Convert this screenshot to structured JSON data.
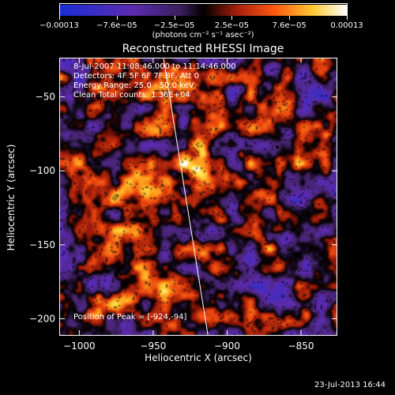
{
  "colorbar": {
    "units_label": "(photons cm⁻² s⁻¹ asec⁻²)",
    "tick_labels": [
      "−0.00013",
      "−7.6e−05",
      "−2.5e−05",
      "2.5e−05",
      "7.6e−05",
      "0.00013"
    ]
  },
  "annotations": {
    "time_range": "8-Jul-2007 11:08:46.000 to 11:14:46.000",
    "detectors": "Detectors: 4F 5F 6F 7F 8F, Att 0",
    "energy": "Energy Range: 25.0 - 50.0 keV",
    "method": "Clean    Total counts: 1.36E+04",
    "peak": "Position of Peak = [-924,-94]"
  },
  "footer": {
    "timestamp": "23-Jul-2013 16:44"
  },
  "colors": {
    "background": "#000000",
    "limb_line": "#ffffff"
  },
  "chart_data": {
    "type": "heatmap",
    "title": "Reconstructed RHESSI Image",
    "xlabel": "Heliocentric X (arcsec)",
    "ylabel": "Heliocentric Y (arcsec)",
    "xlim": [
      -1013,
      -826
    ],
    "ylim": [
      -211,
      -24
    ],
    "x_ticks": [
      -1000,
      -950,
      -900,
      -850
    ],
    "y_ticks": [
      -50,
      -100,
      -150,
      -200
    ],
    "x_tick_labels": [
      "−1000",
      "−950",
      "−900",
      "−850"
    ],
    "y_tick_labels": [
      "−50",
      "−100",
      "−150",
      "−200"
    ],
    "colormap": "blue-purple-red-yellow-white",
    "value_range": [
      -0.00013,
      0.00013
    ],
    "peak_position": [
      -924,
      -94
    ],
    "limb_line": [
      [
        -943,
        -24
      ],
      [
        -913,
        -211
      ]
    ]
  }
}
